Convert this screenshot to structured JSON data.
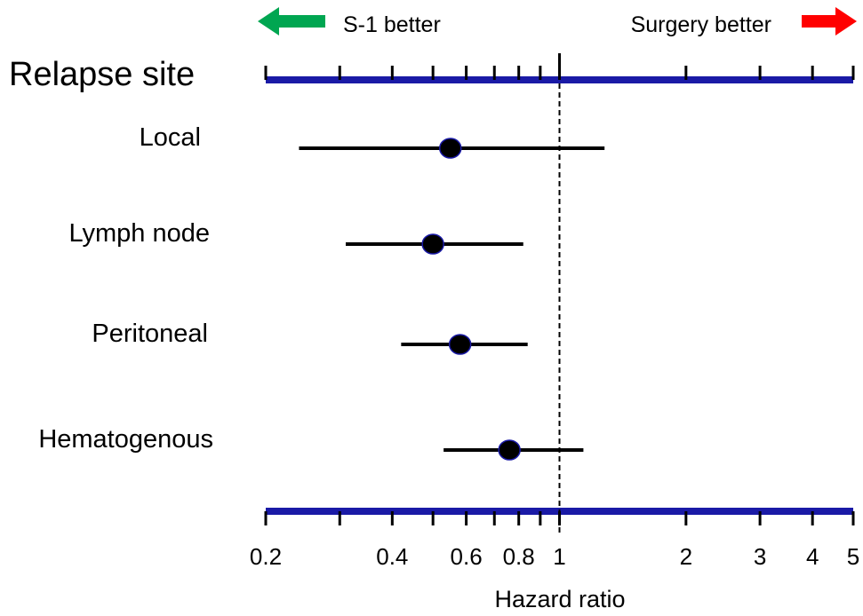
{
  "chart_data": {
    "type": "forest",
    "title": "Relapse site",
    "xlabel": "Hazard ratio",
    "xscale": "log",
    "xlim": [
      0.2,
      5
    ],
    "reference_line": 1,
    "xticks_labeled": [
      "0.2",
      "0.4",
      "0.6",
      "0.8",
      "1",
      "2",
      "3",
      "4",
      "5"
    ],
    "xticks_labeled_values": [
      0.2,
      0.4,
      0.6,
      0.8,
      1,
      2,
      3,
      4,
      5
    ],
    "xticks_minor_values": [
      0.3,
      0.5,
      0.7,
      0.9
    ],
    "direction_labels": {
      "left": "S-1 better",
      "right": "Surgery better",
      "left_color": "#00a651",
      "right_color": "#ff0000"
    },
    "axis_bar_color": "#1a1aa6",
    "marker_color": "#000000",
    "rows": [
      {
        "label": "Local",
        "hr": 0.55,
        "lower": 0.24,
        "upper": 1.28
      },
      {
        "label": "Lymph node",
        "hr": 0.5,
        "lower": 0.31,
        "upper": 0.82
      },
      {
        "label": "Peritoneal",
        "hr": 0.58,
        "lower": 0.42,
        "upper": 0.84
      },
      {
        "label": "Hematogenous",
        "hr": 0.76,
        "lower": 0.53,
        "upper": 1.14
      }
    ]
  }
}
